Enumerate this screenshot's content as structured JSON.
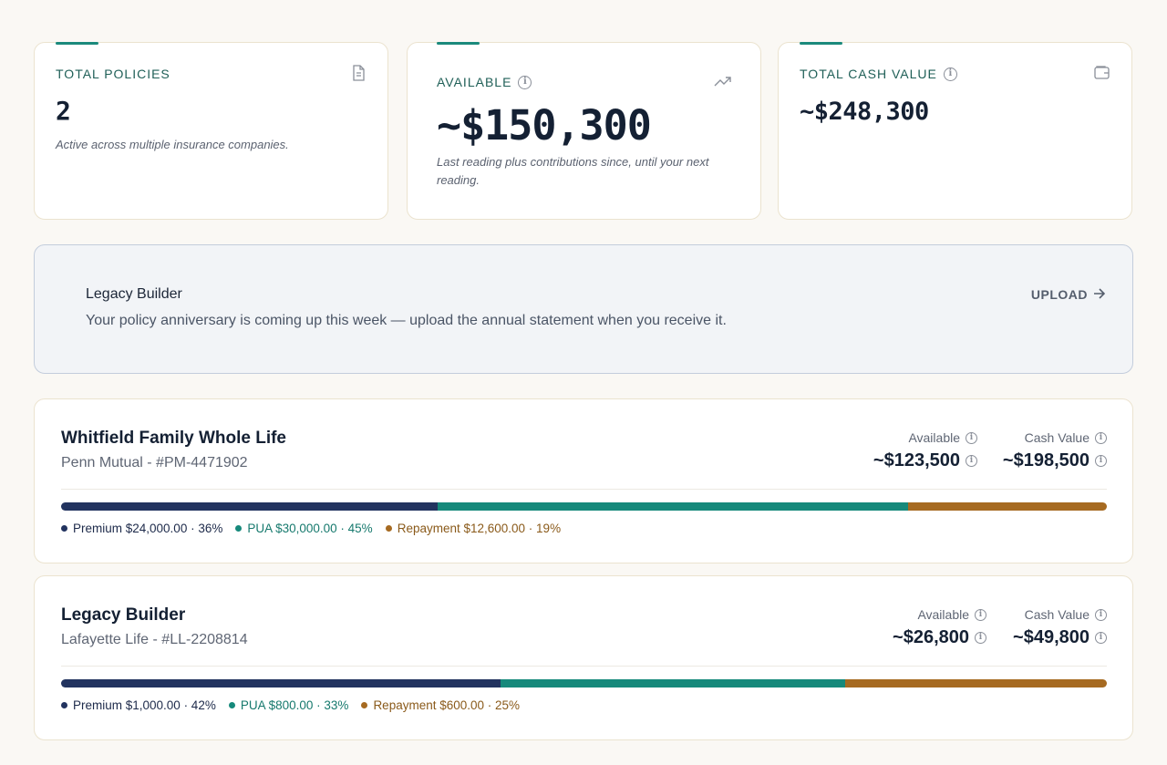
{
  "stats": {
    "total_policies": {
      "label": "TOTAL POLICIES",
      "icon": "document-icon",
      "value": "2",
      "sub": "Active across multiple insurance companies."
    },
    "available": {
      "label": "AVAILABLE",
      "icon": "trending-up-icon",
      "value": "~$150,300",
      "sub": "Last reading plus contributions since, until your next reading."
    },
    "total_cash_value": {
      "label": "TOTAL CASH VALUE",
      "icon": "wallet-icon",
      "value": "~$248,300"
    }
  },
  "notice": {
    "title": "Legacy Builder",
    "message": "Your policy anniversary is coming up this week — upload the annual statement when you receive it.",
    "action": "UPLOAD"
  },
  "policies": [
    {
      "name": "Whitfield Family Whole Life",
      "subtitle": "Penn Mutual - #PM-4471902",
      "available_label": "Available",
      "available": "~$123,500",
      "cash_label": "Cash Value",
      "cash": "~$198,500",
      "breakdown": [
        {
          "key": "premium",
          "text": "Premium $24,000.00 · 36%",
          "fraction": 0.36
        },
        {
          "key": "pua",
          "text": "PUA $30,000.00 · 45%",
          "fraction": 0.45
        },
        {
          "key": "repay",
          "text": "Repayment $12,600.00 · 19%",
          "fraction": 0.19
        }
      ]
    },
    {
      "name": "Legacy Builder",
      "subtitle": "Lafayette Life - #LL-2208814",
      "available_label": "Available",
      "available": "~$26,800",
      "cash_label": "Cash Value",
      "cash": "~$49,800",
      "breakdown": [
        {
          "key": "premium",
          "text": "Premium $1,000.00 · 42%",
          "fraction": 0.42
        },
        {
          "key": "pua",
          "text": "PUA $800.00 · 33%",
          "fraction": 0.33
        },
        {
          "key": "repay",
          "text": "Repayment $600.00 · 25%",
          "fraction": 0.25
        }
      ]
    }
  ],
  "colors": {
    "accent": "#1b8a7c",
    "premium": "#22335f",
    "pua": "#16897b",
    "repayment": "#a66a21"
  }
}
